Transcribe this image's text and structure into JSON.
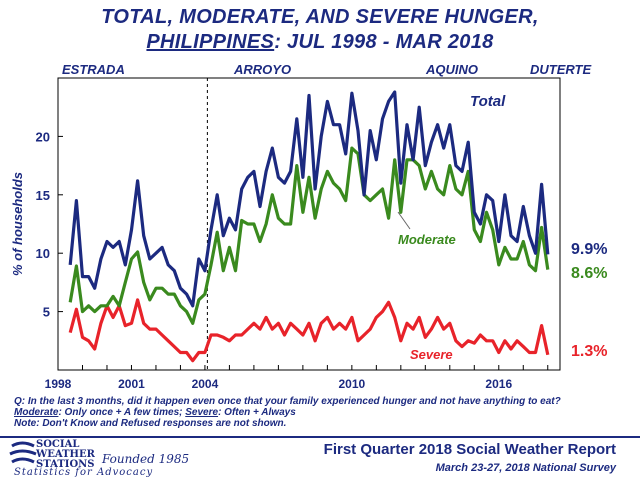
{
  "title_line1": "TOTAL, MODERATE, AND SEVERE HUNGER,",
  "title_line2_underlined": "PHILIPPINES",
  "title_line2_rest": ": JUL 1998 - MAR 2018",
  "eras": [
    "ESTRADA",
    "ARROYO",
    "AQUINO",
    "DUTERTE"
  ],
  "footnotes": {
    "question": "Q: In the last 3 months, did it happen even once that your family experienced hunger and not have anything to eat?",
    "moderate_label": "Moderate",
    "moderate_def": ": Only once + A few times; ",
    "severe_label": "Severe",
    "severe_def": ": Often + Always",
    "note": "Note: Don't Know and Refused responses are not shown."
  },
  "logo": {
    "name_line1": "SOCIAL",
    "name_line2": "WEATHER",
    "name_line3": "STATIONS",
    "founded": "Founded 1985",
    "tagline": "Statistics for Advocacy"
  },
  "report_title": "First Quarter 2018 Social Weather Report",
  "survey_dates": "March 23-27, 2018 National Survey",
  "colors": {
    "total": "#1c2a80",
    "moderate": "#3a8a1e",
    "severe": "#e8232a",
    "text": "#1c2a80"
  },
  "chart_data": {
    "type": "line",
    "title": "TOTAL, MODERATE, AND SEVERE HUNGER, PHILIPPINES: JUL 1998 - MAR 2018",
    "ylabel": "% of households",
    "xlabel": "",
    "xlim": [
      1998.0,
      2018.5
    ],
    "ylim": [
      0,
      25
    ],
    "yticks": [
      5,
      10,
      15,
      20
    ],
    "xticks": [
      "1998",
      "2001",
      "2004",
      "2010",
      "2016"
    ],
    "xtick_values": [
      1998,
      2001,
      2004,
      2010,
      2016
    ],
    "era_divider_x": 2004.1,
    "series": [
      {
        "name": "Total",
        "final_label": "9.9%",
        "x": [
          1998.5,
          1998.75,
          1999.0,
          1999.25,
          1999.5,
          1999.75,
          2000.0,
          2000.25,
          2000.5,
          2000.75,
          2001.0,
          2001.25,
          2001.5,
          2001.75,
          2002.0,
          2002.25,
          2002.5,
          2002.75,
          2003.0,
          2003.25,
          2003.5,
          2003.75,
          2004.0,
          2004.25,
          2004.5,
          2004.75,
          2005.0,
          2005.25,
          2005.5,
          2005.75,
          2006.0,
          2006.25,
          2006.5,
          2006.75,
          2007.0,
          2007.25,
          2007.5,
          2007.75,
          2008.0,
          2008.25,
          2008.5,
          2008.75,
          2009.0,
          2009.25,
          2009.5,
          2009.75,
          2010.0,
          2010.25,
          2010.5,
          2010.75,
          2011.0,
          2011.25,
          2011.5,
          2011.75,
          2012.0,
          2012.25,
          2012.5,
          2012.75,
          2013.0,
          2013.25,
          2013.5,
          2013.75,
          2014.0,
          2014.25,
          2014.5,
          2014.75,
          2015.0,
          2015.25,
          2015.5,
          2015.75,
          2016.0,
          2016.25,
          2016.5,
          2016.75,
          2017.0,
          2017.25,
          2017.5,
          2017.75,
          2018.0
        ],
        "values": [
          9.0,
          14.5,
          8.0,
          8.0,
          7.0,
          9.5,
          11.0,
          10.5,
          11.0,
          9.0,
          12.0,
          16.2,
          11.5,
          9.5,
          10.0,
          10.5,
          9.0,
          8.5,
          7.0,
          6.5,
          5.5,
          9.5,
          8.5,
          12.0,
          15.0,
          11.5,
          13.0,
          12.0,
          15.5,
          16.5,
          17.0,
          14.0,
          17.0,
          19.0,
          16.5,
          16.0,
          17.0,
          21.5,
          16.5,
          23.5,
          15.5,
          20.0,
          23.0,
          21.0,
          21.0,
          18.5,
          23.7,
          20.5,
          15.0,
          20.5,
          18.0,
          21.5,
          23.0,
          23.8,
          16.0,
          21.0,
          18.0,
          22.5,
          17.5,
          19.5,
          21.0,
          19.0,
          21.0,
          17.5,
          17.0,
          19.5,
          13.5,
          12.5,
          15.0,
          14.5,
          11.0,
          15.0,
          11.5,
          11.0,
          14.0,
          11.5,
          10.0,
          15.9,
          9.9
        ]
      },
      {
        "name": "Moderate",
        "final_label": "8.6%",
        "x": [
          1998.5,
          1998.75,
          1999.0,
          1999.25,
          1999.5,
          1999.75,
          2000.0,
          2000.25,
          2000.5,
          2000.75,
          2001.0,
          2001.25,
          2001.5,
          2001.75,
          2002.0,
          2002.25,
          2002.5,
          2002.75,
          2003.0,
          2003.25,
          2003.5,
          2003.75,
          2004.0,
          2004.25,
          2004.5,
          2004.75,
          2005.0,
          2005.25,
          2005.5,
          2005.75,
          2006.0,
          2006.25,
          2006.5,
          2006.75,
          2007.0,
          2007.25,
          2007.5,
          2007.75,
          2008.0,
          2008.25,
          2008.5,
          2008.75,
          2009.0,
          2009.25,
          2009.5,
          2009.75,
          2010.0,
          2010.25,
          2010.5,
          2010.75,
          2011.0,
          2011.25,
          2011.5,
          2011.75,
          2012.0,
          2012.25,
          2012.5,
          2012.75,
          2013.0,
          2013.25,
          2013.5,
          2013.75,
          2014.0,
          2014.25,
          2014.5,
          2014.75,
          2015.0,
          2015.25,
          2015.5,
          2015.75,
          2016.0,
          2016.25,
          2016.5,
          2016.75,
          2017.0,
          2017.25,
          2017.5,
          2017.75,
          2018.0
        ],
        "values": [
          5.8,
          8.9,
          5.0,
          5.5,
          5.0,
          5.5,
          5.5,
          6.3,
          5.5,
          7.5,
          9.5,
          10.1,
          7.5,
          6.0,
          7.0,
          7.0,
          6.5,
          6.5,
          5.5,
          5.0,
          4.0,
          6.0,
          6.5,
          9.0,
          11.8,
          8.5,
          10.5,
          8.5,
          12.8,
          12.5,
          12.5,
          11.0,
          12.5,
          15.0,
          13.0,
          12.5,
          12.5,
          17.5,
          13.5,
          16.5,
          13.0,
          15.5,
          17.0,
          16.0,
          15.5,
          14.5,
          19.0,
          18.5,
          15.0,
          14.5,
          15.0,
          15.5,
          13.0,
          18.0,
          13.5,
          18.0,
          18.0,
          17.5,
          15.5,
          17.0,
          15.5,
          15.0,
          17.5,
          15.5,
          15.0,
          17.0,
          12.0,
          11.0,
          13.5,
          12.0,
          9.0,
          10.5,
          9.5,
          9.5,
          11.0,
          9.0,
          8.5,
          12.2,
          8.6
        ]
      },
      {
        "name": "Severe",
        "final_label": "1.3%",
        "x": [
          1998.5,
          1998.75,
          1999.0,
          1999.25,
          1999.5,
          1999.75,
          2000.0,
          2000.25,
          2000.5,
          2000.75,
          2001.0,
          2001.25,
          2001.5,
          2001.75,
          2002.0,
          2002.25,
          2002.5,
          2002.75,
          2003.0,
          2003.25,
          2003.5,
          2003.75,
          2004.0,
          2004.25,
          2004.5,
          2004.75,
          2005.0,
          2005.25,
          2005.5,
          2005.75,
          2006.0,
          2006.25,
          2006.5,
          2006.75,
          2007.0,
          2007.25,
          2007.5,
          2007.75,
          2008.0,
          2008.25,
          2008.5,
          2008.75,
          2009.0,
          2009.25,
          2009.5,
          2009.75,
          2010.0,
          2010.25,
          2010.5,
          2010.75,
          2011.0,
          2011.25,
          2011.5,
          2011.75,
          2012.0,
          2012.25,
          2012.5,
          2012.75,
          2013.0,
          2013.25,
          2013.5,
          2013.75,
          2014.0,
          2014.25,
          2014.5,
          2014.75,
          2015.0,
          2015.25,
          2015.5,
          2015.75,
          2016.0,
          2016.25,
          2016.5,
          2016.75,
          2017.0,
          2017.25,
          2017.5,
          2017.75,
          2018.0
        ],
        "values": [
          3.2,
          5.2,
          2.8,
          2.5,
          1.8,
          4.0,
          5.5,
          4.5,
          5.5,
          3.8,
          4.0,
          6.0,
          4.0,
          3.5,
          3.5,
          3.0,
          2.5,
          2.0,
          1.5,
          1.5,
          0.8,
          1.5,
          1.5,
          3.0,
          3.0,
          2.8,
          2.5,
          3.0,
          3.0,
          3.5,
          4.0,
          3.5,
          4.5,
          3.5,
          4.0,
          3.0,
          4.0,
          3.5,
          3.0,
          4.0,
          2.5,
          4.0,
          4.5,
          3.5,
          4.0,
          3.5,
          4.5,
          2.5,
          3.0,
          3.5,
          4.5,
          5.0,
          5.8,
          4.5,
          2.5,
          4.0,
          3.5,
          4.5,
          2.8,
          3.5,
          4.5,
          3.5,
          4.0,
          2.5,
          2.0,
          2.5,
          2.3,
          3.0,
          2.5,
          2.5,
          1.5,
          2.5,
          1.8,
          2.5,
          2.0,
          1.5,
          1.5,
          3.8,
          1.3
        ]
      }
    ]
  }
}
